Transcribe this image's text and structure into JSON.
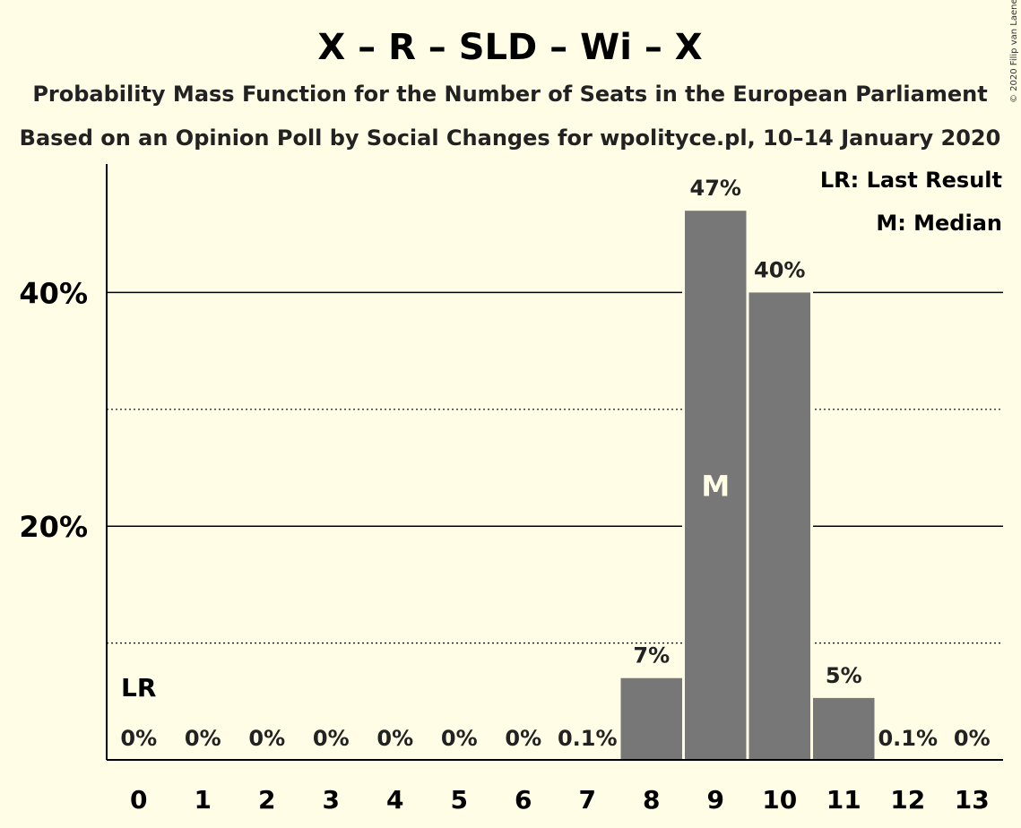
{
  "chart_data": {
    "type": "bar",
    "title": "X – R – SLD – Wi – X",
    "subtitle_1": "Probability Mass Function for the Number of Seats in the European Parliament",
    "subtitle_2": "Based on an Opinion Poll by Social Changes for wpolityce.pl, 10–14 January 2020",
    "copyright": "© 2020 Filip van Laenen",
    "categories": [
      "0",
      "1",
      "2",
      "3",
      "4",
      "5",
      "6",
      "7",
      "8",
      "9",
      "10",
      "11",
      "12",
      "13"
    ],
    "values": [
      0,
      0,
      0,
      0,
      0,
      0,
      0,
      0.1,
      7,
      47,
      40,
      5.3,
      0.1,
      0
    ],
    "value_labels": [
      "0%",
      "0%",
      "0%",
      "0%",
      "0%",
      "0%",
      "0%",
      "0.1%",
      "7%",
      "47%",
      "40%",
      "5%",
      "0.1%",
      "0%"
    ],
    "ylim": [
      0,
      51
    ],
    "yticks_solid": [
      20,
      40
    ],
    "ytick_labels": [
      "20%",
      "40%"
    ],
    "yticks_dotted": [
      10,
      30
    ],
    "median_index": 9,
    "median_marker": "M",
    "last_result_index": 0,
    "last_result_marker": "LR",
    "legend": [
      "LR: Last Result",
      "M: Median"
    ],
    "colors": {
      "bar": "#777777",
      "background": "#fffde5"
    }
  }
}
